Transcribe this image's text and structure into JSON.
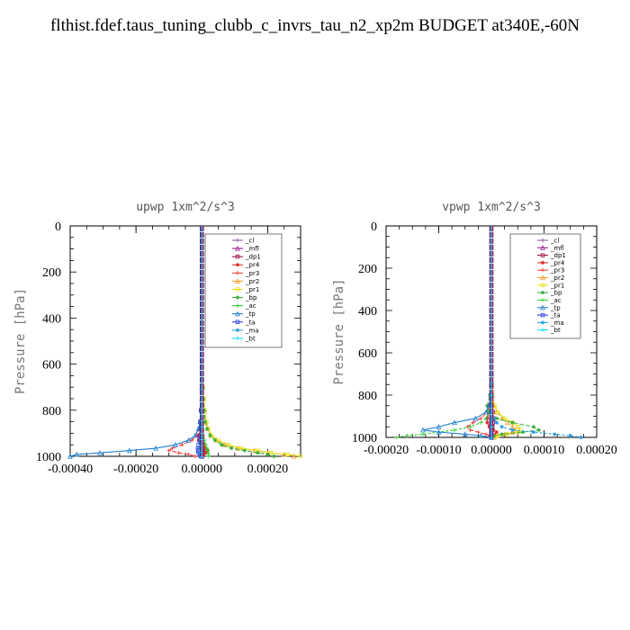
{
  "title": "flthist.fdef.taus_tuning_clubb_c_invrs_tau_n2_xp2m  BUDGET at340E,-60N",
  "chart_data": [
    {
      "type": "line",
      "title": "upwp   1xm^2/s^3",
      "ylabel": "Pressure [hPa]",
      "xlabel": "",
      "xlim": [
        -0.0004,
        0.0003
      ],
      "ylim": [
        1000,
        0
      ],
      "x_ticks": [
        "-0.00040",
        "-0.00020",
        "0.00000",
        "0.00020"
      ],
      "x_tick_values": [
        -0.0004,
        -0.0002,
        0.0,
        0.0002
      ],
      "y_ticks": [
        "0",
        "200",
        "400",
        "600",
        "800",
        "1000"
      ],
      "legend_position": "top-right",
      "pressure": [
        0,
        100,
        200,
        300,
        400,
        500,
        600,
        700,
        750,
        800,
        850,
        880,
        910,
        930,
        950,
        965,
        975,
        985,
        992,
        1000
      ],
      "series": [
        {
          "name": "_cl",
          "color": "#8e5ea2",
          "values": [
            0,
            0,
            0,
            0,
            0,
            0,
            0,
            0,
            0,
            0,
            0,
            0,
            0,
            0,
            0,
            0,
            0,
            0,
            0,
            0
          ]
        },
        {
          "name": "_mfl",
          "color": "#9b1f8f",
          "values": [
            0,
            0,
            0,
            0,
            0,
            0,
            0,
            0,
            0,
            0,
            0,
            0,
            0,
            0,
            0,
            0,
            0,
            0,
            0,
            0
          ]
        },
        {
          "name": "_dp1",
          "color": "#a01040",
          "values": [
            0,
            0,
            0,
            0,
            0,
            0,
            0,
            0,
            0,
            -3e-06,
            -5e-06,
            -7e-06,
            -8e-06,
            -5e-06,
            2e-06,
            6e-06,
            8e-06,
            5e-06,
            3e-06,
            0
          ]
        },
        {
          "name": "_pr4",
          "color": "#e03030",
          "values": [
            0,
            0,
            0,
            0,
            0,
            0,
            0,
            0,
            0,
            0,
            -2e-06,
            -4e-06,
            -8e-06,
            -1e-05,
            5e-06,
            1.2e-05,
            1.8e-05,
            1.2e-05,
            5e-06,
            0
          ]
        },
        {
          "name": "_pr3",
          "color": "#f04040",
          "values": [
            0,
            0,
            0,
            0,
            0,
            0,
            0,
            0,
            0,
            0,
            -3e-06,
            -8e-06,
            -1.5e-05,
            -3e-05,
            -6e-05,
            -9e-05,
            -0.0001,
            -7e-05,
            -4e-05,
            -2e-05
          ]
        },
        {
          "name": "_pr2",
          "color": "#f0a030",
          "values": [
            0,
            0,
            0,
            0,
            0,
            0,
            0,
            3e-06,
            5e-06,
            8e-06,
            1.2e-05,
            1.8e-05,
            2.8e-05,
            4.5e-05,
            7e-05,
            0.00011,
            0.00016,
            0.0002,
            0.00025,
            0.00028
          ]
        },
        {
          "name": "_pr1",
          "color": "#e8e020",
          "values": [
            0,
            0,
            0,
            0,
            0,
            0,
            0,
            4e-06,
            6e-06,
            9e-06,
            1.4e-05,
            2e-05,
            3e-05,
            5e-05,
            8e-05,
            0.00012,
            0.00017,
            0.00021,
            0.00026,
            0.0003
          ]
        },
        {
          "name": "_bp",
          "color": "#40b040",
          "values": [
            0,
            0,
            0,
            0,
            0,
            0,
            0,
            2e-06,
            4e-06,
            7e-06,
            1e-05,
            1.6e-05,
            2.5e-05,
            4e-05,
            6e-05,
            9e-05,
            0.00013,
            0.00017,
            0.0002,
            0.00022
          ]
        },
        {
          "name": "_ac",
          "color": "#30d030",
          "values": [
            0,
            0,
            0,
            0,
            0,
            0,
            0,
            0,
            0,
            1e-06,
            2e-06,
            3e-06,
            5e-06,
            8e-06,
            1.2e-05,
            1.5e-05,
            1.8e-05,
            2e-05,
            2e-05,
            2e-05
          ]
        },
        {
          "name": "_tp",
          "color": "#2080d0",
          "values": [
            0,
            0,
            0,
            0,
            0,
            0,
            0,
            0,
            0,
            -3e-06,
            -6e-06,
            -1e-05,
            -2e-05,
            -4e-05,
            -8e-05,
            -0.00014,
            -0.00022,
            -0.00031,
            -0.00038,
            -0.0004
          ]
        },
        {
          "name": "_ta",
          "color": "#3040e0",
          "values": [
            0,
            0,
            0,
            0,
            0,
            0,
            0,
            0,
            0,
            -1e-06,
            -2e-06,
            -3e-06,
            -5e-06,
            -7e-06,
            -1e-05,
            -1.2e-05,
            -1.2e-05,
            -1e-05,
            -6e-06,
            -3e-06
          ]
        },
        {
          "name": "_ma",
          "color": "#30a0e0",
          "values": [
            0,
            0,
            0,
            0,
            0,
            0,
            0,
            0,
            0,
            0,
            0,
            -1e-06,
            -2e-06,
            -3e-06,
            -4e-06,
            -5e-06,
            -5e-06,
            -4e-06,
            -3e-06,
            -2e-06
          ]
        },
        {
          "name": "_bt",
          "color": "#10e0f0",
          "values": [
            0,
            0,
            0,
            0,
            0,
            0,
            0,
            0,
            0,
            0,
            0,
            0,
            0,
            0,
            0,
            0,
            0,
            0,
            0,
            0
          ]
        }
      ]
    },
    {
      "type": "line",
      "title": "vpwp   1xm^2/s^3",
      "ylabel": "Pressure [hPa]",
      "xlabel": "",
      "xlim": [
        -0.0002,
        0.0002
      ],
      "ylim": [
        1000,
        0
      ],
      "x_ticks": [
        "-0.00020",
        "-0.00010",
        "0.00000",
        "0.00010",
        "0.00020"
      ],
      "x_tick_values": [
        -0.0002,
        -0.0001,
        0.0,
        0.0001,
        0.0002
      ],
      "y_ticks": [
        "0",
        "200",
        "400",
        "600",
        "800",
        "1000"
      ],
      "legend_position": "top-right",
      "pressure": [
        0,
        100,
        200,
        300,
        400,
        500,
        600,
        700,
        750,
        800,
        850,
        880,
        910,
        930,
        950,
        965,
        975,
        985,
        992,
        1000
      ],
      "series": [
        {
          "name": "_cl",
          "color": "#8e5ea2",
          "values": [
            0,
            0,
            0,
            0,
            0,
            0,
            0,
            0,
            0,
            0,
            0,
            0,
            0,
            0,
            0,
            0,
            0,
            0,
            0,
            0
          ]
        },
        {
          "name": "_mfl",
          "color": "#9b1f8f",
          "values": [
            0,
            0,
            0,
            0,
            0,
            0,
            0,
            0,
            0,
            0,
            0,
            0,
            0,
            0,
            0,
            0,
            0,
            0,
            0,
            0
          ]
        },
        {
          "name": "_dp1",
          "color": "#a01040",
          "values": [
            0,
            0,
            0,
            0,
            0,
            0,
            0,
            0,
            0,
            0,
            2e-06,
            3e-06,
            4e-06,
            3e-06,
            2e-06,
            1e-06,
            0,
            0,
            0,
            0
          ]
        },
        {
          "name": "_pr4",
          "color": "#e03030",
          "values": [
            0,
            0,
            0,
            0,
            0,
            0,
            0,
            0,
            0,
            0,
            -2e-06,
            -4e-06,
            -8e-06,
            -8e-06,
            -4e-06,
            4e-06,
            1e-05,
            8e-06,
            4e-06,
            0
          ]
        },
        {
          "name": "_pr3",
          "color": "#f04040",
          "values": [
            0,
            0,
            0,
            0,
            0,
            0,
            0,
            0,
            0,
            0,
            -3e-06,
            -8e-06,
            -2e-05,
            -3.5e-05,
            -4.5e-05,
            -4e-05,
            -2.5e-05,
            -1e-05,
            -3e-06,
            0
          ]
        },
        {
          "name": "_pr2",
          "color": "#f0a030",
          "values": [
            0,
            0,
            0,
            0,
            0,
            0,
            0,
            0,
            1e-06,
            2e-06,
            5e-06,
            1e-05,
            2e-05,
            3e-05,
            4e-05,
            4.5e-05,
            4e-05,
            2.5e-05,
            1e-05,
            5e-06
          ]
        },
        {
          "name": "_pr1",
          "color": "#e8e020",
          "values": [
            0,
            0,
            0,
            0,
            0,
            0,
            0,
            0,
            1e-06,
            2e-06,
            6e-06,
            1.2e-05,
            2.5e-05,
            4e-05,
            5e-05,
            5.5e-05,
            5e-05,
            3e-05,
            1.2e-05,
            6e-06
          ]
        },
        {
          "name": "_bp",
          "color": "#40b040",
          "values": [
            0,
            0,
            0,
            0,
            0,
            0,
            0,
            0,
            0,
            -3e-06,
            -8e-06,
            -5e-06,
            1e-05,
            4e-05,
            8e-05,
            9e-05,
            6e-05,
            2e-05,
            5e-06,
            0
          ]
        },
        {
          "name": "_ac",
          "color": "#30d030",
          "values": [
            0,
            0,
            0,
            0,
            0,
            0,
            0,
            0,
            0,
            0,
            0,
            -5e-06,
            -1e-05,
            -2e-05,
            -4e-05,
            -7e-05,
            -0.0001,
            -0.00013,
            -0.00016,
            -0.00018
          ]
        },
        {
          "name": "_tp",
          "color": "#2080d0",
          "values": [
            0,
            0,
            0,
            0,
            0,
            0,
            0,
            0,
            0,
            0,
            -5e-06,
            -1e-05,
            -3e-05,
            -7e-05,
            -0.0001,
            -0.00013,
            -0.0001,
            -5e-05,
            -2e-05,
            0
          ]
        },
        {
          "name": "_ta",
          "color": "#3040e0",
          "values": [
            0,
            0,
            0,
            0,
            0,
            0,
            0,
            0,
            0,
            0,
            0,
            0,
            0,
            0,
            0,
            0,
            0,
            0,
            0,
            0
          ]
        },
        {
          "name": "_ma",
          "color": "#30a0e0",
          "values": [
            0,
            0,
            0,
            0,
            0,
            0,
            0,
            0,
            0,
            0,
            0,
            0,
            5e-06,
            1e-05,
            2e-05,
            4e-05,
            8e-05,
            0.00012,
            0.00015,
            0.00017
          ]
        },
        {
          "name": "_bt",
          "color": "#10e0f0",
          "values": [
            0,
            0,
            0,
            0,
            0,
            0,
            0,
            0,
            0,
            0,
            0,
            0,
            0,
            0,
            0,
            0,
            0,
            0,
            0,
            0
          ]
        }
      ]
    }
  ]
}
